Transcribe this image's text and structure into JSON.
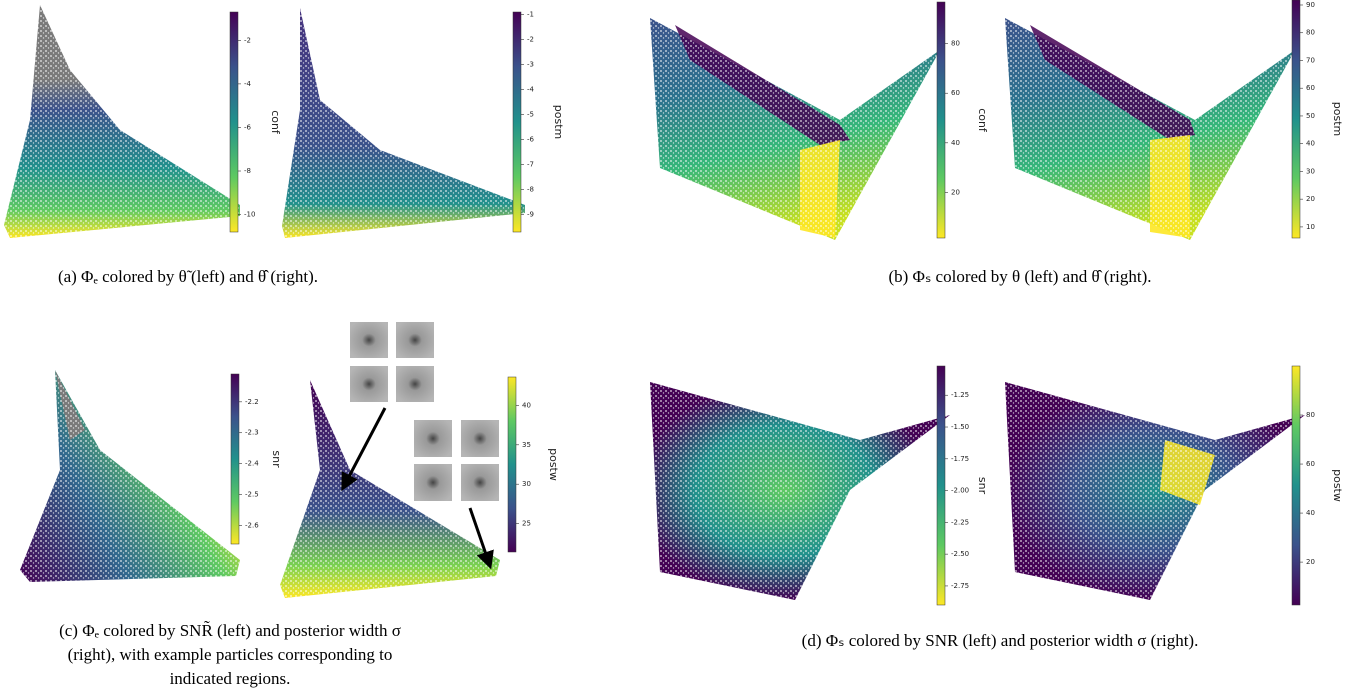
{
  "panels": [
    {
      "caption": [
        "(a) Φₑ colored by θ̃ (left) and θ̂ (right)."
      ],
      "plots": [
        {
          "colorbar": {
            "label": "conf",
            "cmap": "viridis_r",
            "lim": [
              -10.8,
              -0.7
            ],
            "ticks": [
              -2,
              -4,
              -6,
              -8,
              -10
            ]
          }
        },
        {
          "colorbar": {
            "label": "postm",
            "cmap": "viridis_r",
            "lim": [
              -9.7,
              -0.9
            ],
            "ticks": [
              -1,
              -2,
              -3,
              -4,
              -5,
              -6,
              -7,
              -8,
              -9
            ]
          }
        }
      ]
    },
    {
      "caption": [
        "(b) Φₛ colored by θ (left) and θ̂ (right)."
      ],
      "plots": [
        {
          "colorbar": {
            "label": "conf",
            "cmap": "viridis_r",
            "lim": [
              1.6,
              96.8
            ],
            "ticks": [
              20,
              40,
              60,
              80
            ]
          }
        },
        {
          "colorbar": {
            "label": "postm",
            "cmap": "viridis_r",
            "lim": [
              6,
              91.8
            ],
            "ticks": [
              10,
              20,
              30,
              40,
              50,
              60,
              70,
              80,
              90
            ]
          }
        }
      ]
    },
    {
      "caption": [
        "(c) Φₑ colored by SNR̃ (left) and posterior width σ",
        "(right), with example particles corresponding to",
        "indicated regions."
      ],
      "plots": [
        {
          "colorbar": {
            "label": "snr",
            "cmap": "viridis_r",
            "lim": [
              -2.66,
              -2.11
            ],
            "ticks": [
              -2.2,
              -2.3,
              -2.4,
              -2.5,
              -2.6
            ]
          }
        },
        {
          "colorbar": {
            "label": "postw",
            "cmap": "viridis",
            "lim": [
              21.4,
              43.6
            ],
            "ticks": [
              25,
              30,
              35,
              40
            ]
          }
        }
      ]
    },
    {
      "caption": [
        "(d) Φₛ colored by SNR (left) and posterior width σ (right)."
      ],
      "plots": [
        {
          "colorbar": {
            "label": "snr",
            "cmap": "viridis_r",
            "lim": [
              -2.9,
              -1.02
            ],
            "ticks": [
              {
                "value": -1.25,
                "label": "-1.25"
              },
              {
                "value": -1.5,
                "label": "-1.50"
              },
              {
                "value": -1.75,
                "label": "-1.75"
              },
              {
                "value": -2,
                "label": "-2.00"
              },
              {
                "value": -2.25,
                "label": "-2.25"
              },
              {
                "value": -2.5,
                "label": "-2.50"
              },
              {
                "value": -2.75,
                "label": "-2.75"
              }
            ]
          }
        },
        {
          "colorbar": {
            "label": "postw",
            "cmap": "viridis",
            "lim": [
              2.5,
              100
            ],
            "ticks": [
              20,
              40,
              60,
              80
            ]
          }
        }
      ]
    }
  ]
}
